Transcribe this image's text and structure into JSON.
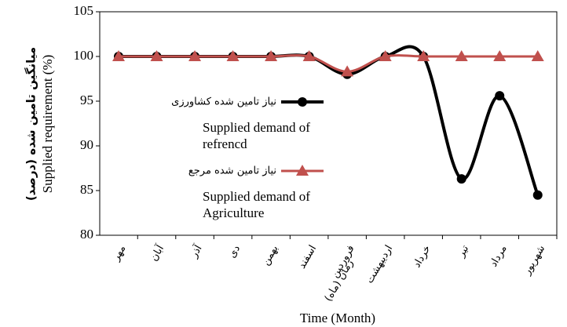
{
  "chart_data": {
    "type": "line",
    "y_label": "Supplied requirement (%)",
    "y_label_fa": "میانگین تامین شده (درصد)",
    "x_label": "Time (Month)",
    "x_label_fa": "زمان (ماه)",
    "categories": [
      "مهر",
      "آبان",
      "آذر",
      "دی",
      "بهمن",
      "اسفند",
      "فروردین",
      "اردیبهشت",
      "خرداد",
      "تیر",
      "مرداد",
      "شهریور"
    ],
    "series": [
      {
        "name": "نیاز تامین شده کشاورزی",
        "description": "Supplied demand of refrencd",
        "color": "#000000",
        "marker": "circle",
        "values": [
          100,
          100,
          100,
          100,
          100,
          100,
          98,
          100,
          100,
          86.3,
          95.6,
          84.5
        ]
      },
      {
        "name": "نیاز تامین شده مرجع",
        "description": "Supplied demand of Agriculture",
        "color": "#c0504d",
        "marker": "triangle",
        "values": [
          100,
          100,
          100,
          100,
          100,
          100,
          98.3,
          100,
          100,
          100,
          100,
          100
        ]
      }
    ],
    "ylim": [
      80,
      105
    ],
    "yticks": [
      80,
      85,
      90,
      95,
      100,
      105
    ],
    "grid": false,
    "smooth": true
  }
}
